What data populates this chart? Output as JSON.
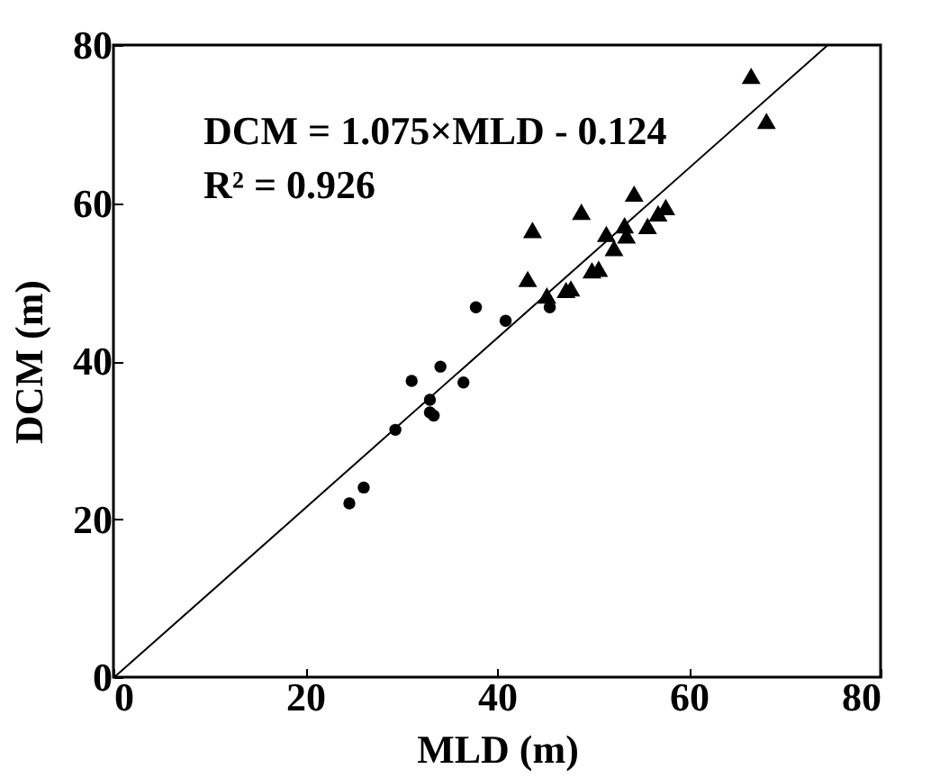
{
  "chart_data": {
    "type": "scatter",
    "xlabel": "MLD (m)",
    "ylabel": "DCM (m)",
    "annotations": [
      "DCM = 1.075×MLD - 0.124",
      "R² = 0.926"
    ],
    "xlim": [
      0,
      80
    ],
    "xticks": [
      0,
      20,
      40,
      60,
      80
    ],
    "ylim": [
      0,
      80
    ],
    "yticks": [
      0,
      20,
      40,
      60,
      80
    ],
    "grid": false,
    "series": [
      {
        "marker": "circle",
        "color": "#000000",
        "x": [
          24.6,
          26.1,
          29.4,
          31.1,
          33.0,
          33.0,
          33.4,
          34.1,
          36.5,
          37.8,
          40.9,
          45.5
        ],
        "values": [
          22.0,
          24.0,
          31.3,
          37.5,
          35.1,
          33.5,
          33.1,
          39.3,
          37.3,
          46.8,
          45.1,
          46.8
        ]
      },
      {
        "marker": "triangle",
        "color": "#000000",
        "x": [
          43.7,
          43.2,
          45.2,
          47.2,
          47.7,
          48.8,
          49.9,
          50.6,
          51.4,
          52.2,
          53.3,
          53.5,
          54.3,
          55.7,
          56.8,
          57.6,
          66.5,
          68.1
        ],
        "values": [
          56.6,
          50.4,
          48.3,
          49.0,
          49.2,
          58.9,
          51.5,
          51.7,
          56.1,
          54.3,
          57.2,
          55.9,
          61.2,
          57.1,
          58.7,
          59.5,
          76.1,
          70.4
        ]
      },
      {
        "type": "line",
        "line_style": "solid",
        "color": "#000000",
        "x": [
          0.2,
          74.5
        ],
        "values": [
          0.1,
          80
        ]
      }
    ]
  }
}
